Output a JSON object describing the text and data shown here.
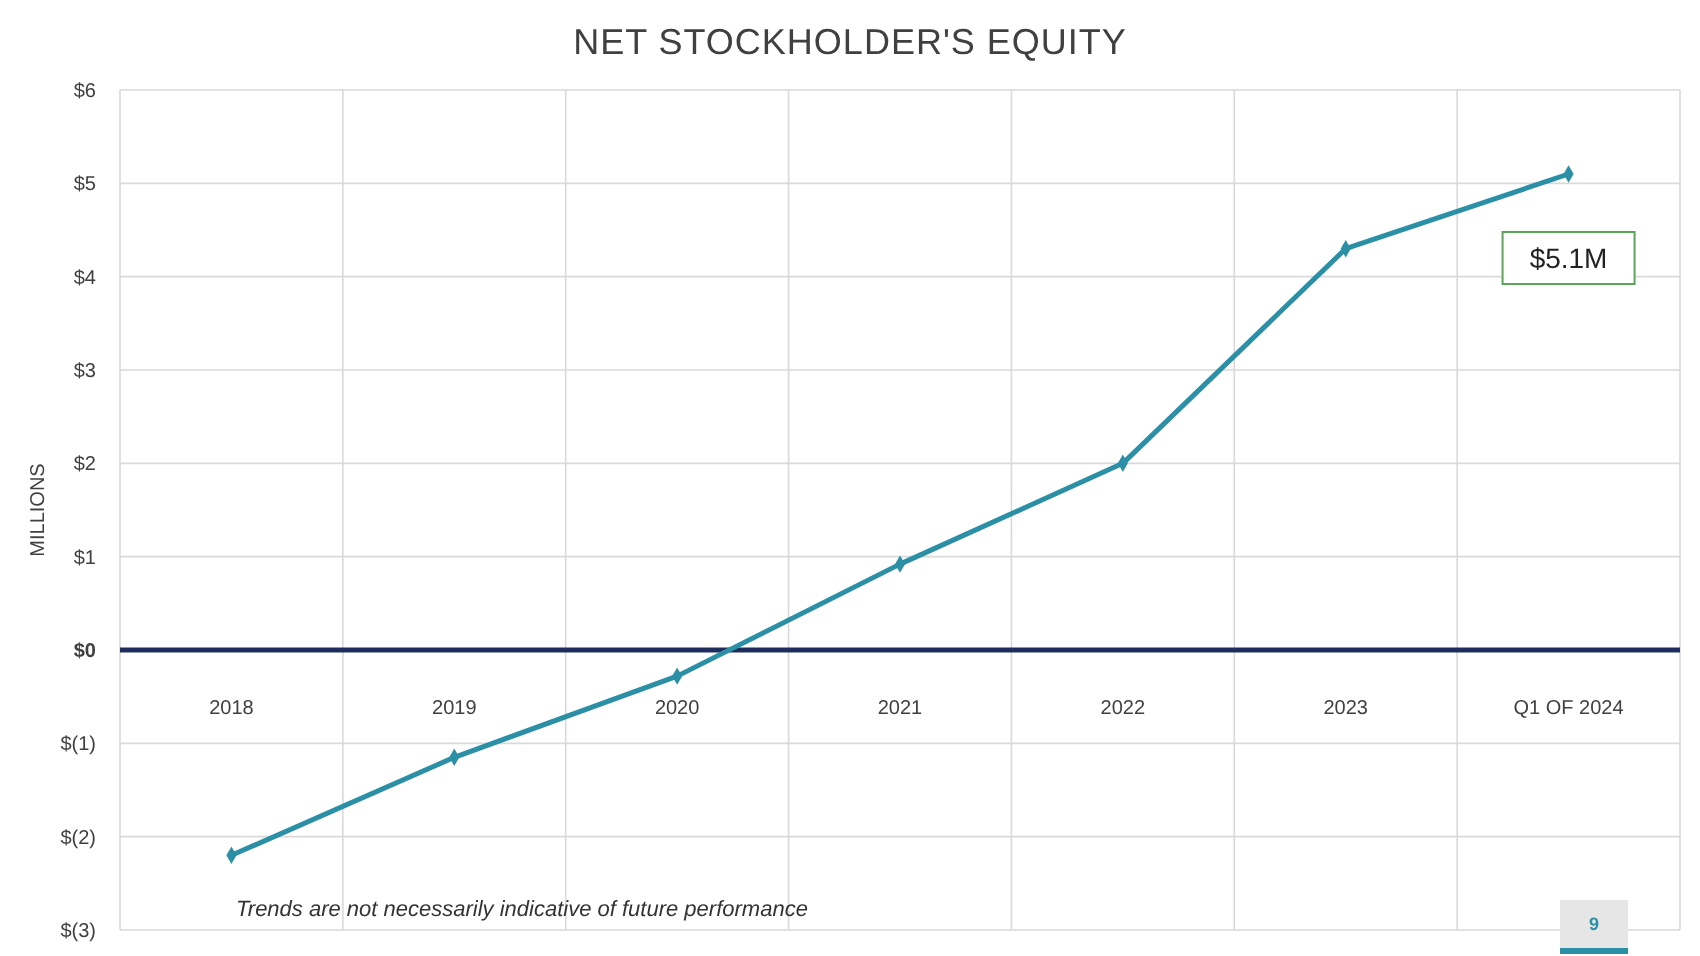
{
  "chart_data": {
    "type": "line",
    "title": "NET STOCKHOLDER'S EQUITY",
    "ylabel": "MILLIONS",
    "categories": [
      "2018",
      "2019",
      "2020",
      "2021",
      "2022",
      "2023",
      "Q1 OF 2024"
    ],
    "series": [
      {
        "color": "#2b8fa6",
        "values": [
          -2.2,
          -1.15,
          -0.28,
          0.92,
          2.0,
          4.3,
          5.1
        ]
      }
    ],
    "ylim": [
      -3,
      6
    ],
    "yticks": [
      {
        "value": -3,
        "label": "$(3)"
      },
      {
        "value": -2,
        "label": "$(2)"
      },
      {
        "value": -1,
        "label": "$(1)"
      },
      {
        "value": 0,
        "label": "$0"
      },
      {
        "value": 1,
        "label": "$1"
      },
      {
        "value": 2,
        "label": "$2"
      },
      {
        "value": 3,
        "label": "$3"
      },
      {
        "value": 4,
        "label": "$4"
      },
      {
        "value": 5,
        "label": "$5"
      },
      {
        "value": 6,
        "label": "$6"
      }
    ],
    "grid": true,
    "marker": "diamond",
    "line_style": "solid",
    "annotations": [
      {
        "text": "$5.1M",
        "x": "Q1 OF 2024",
        "y": 5.1
      },
      "Trends are not necessarily indicative of future performance",
      "9"
    ]
  }
}
